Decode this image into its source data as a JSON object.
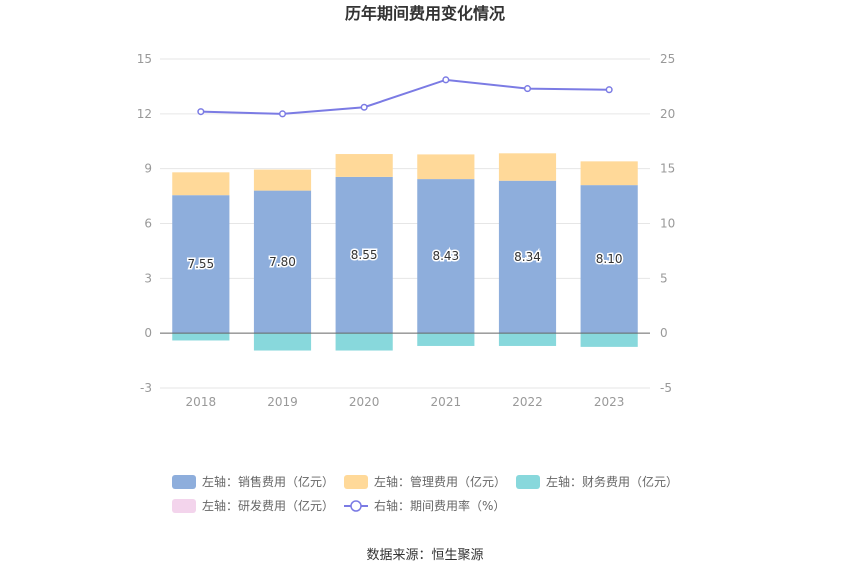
{
  "chart_data": {
    "type": "bar",
    "title": "历年期间费用变化情况",
    "categories": [
      "2018",
      "2019",
      "2020",
      "2021",
      "2022",
      "2023"
    ],
    "left_axis": {
      "min": -3,
      "max": 15,
      "ticks": [
        "-3",
        "0",
        "3",
        "6",
        "9",
        "12",
        "15"
      ]
    },
    "right_axis": {
      "min": -5,
      "max": 25,
      "ticks": [
        "-5",
        "0",
        "5",
        "10",
        "15",
        "20",
        "25"
      ]
    },
    "series": [
      {
        "name": "左轴：销售费用（亿元）",
        "kind": "bar",
        "axis": "left",
        "color": "#8eaedc",
        "values": [
          7.55,
          7.8,
          8.55,
          8.43,
          8.34,
          8.1
        ],
        "labels": [
          "7.55",
          "7.80",
          "8.55",
          "8.43",
          "8.34",
          "8.10"
        ]
      },
      {
        "name": "左轴：管理费用（亿元）",
        "kind": "bar",
        "axis": "left",
        "color": "#ffd999",
        "values": [
          1.25,
          1.15,
          1.25,
          1.35,
          1.5,
          1.3
        ]
      },
      {
        "name": "左轴：财务费用（亿元）",
        "kind": "bar",
        "axis": "left",
        "color": "#88d8dc",
        "values": [
          -0.4,
          -0.95,
          -0.95,
          -0.7,
          -0.7,
          -0.75
        ]
      },
      {
        "name": "左轴：研发费用（亿元）",
        "kind": "bar",
        "axis": "left",
        "color": "#f3d4ec",
        "values": [
          0,
          0,
          0,
          0,
          0,
          0
        ]
      },
      {
        "name": "右轴：期间费用率（%）",
        "kind": "line",
        "axis": "right",
        "color": "#7b7be4",
        "values": [
          20.2,
          20.0,
          20.6,
          23.1,
          22.3,
          22.2
        ]
      }
    ],
    "grid": true,
    "legend_position": "bottom"
  },
  "source": "数据来源：恒生聚源"
}
